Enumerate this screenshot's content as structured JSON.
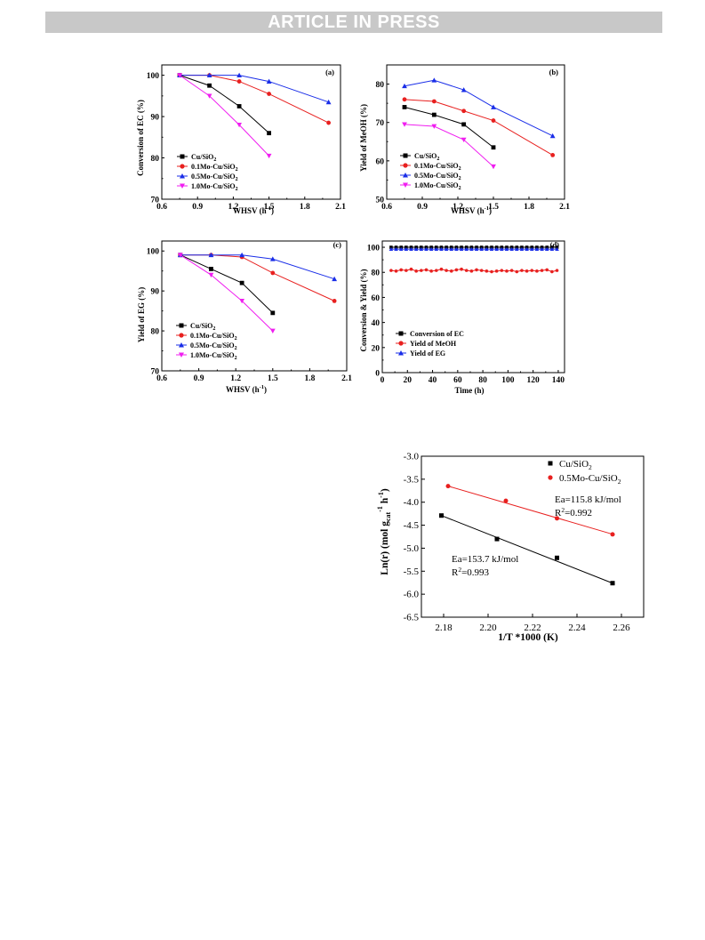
{
  "header": {
    "banner": "ARTICLE IN PRESS"
  },
  "legend_series": [
    {
      "name": "Cu/SiO",
      "sub": "2",
      "color": "#000000",
      "marker": "square"
    },
    {
      "name": "0.1Mo-Cu/SiO",
      "sub": "2",
      "color": "#e8201f",
      "marker": "circle"
    },
    {
      "name": "0.5Mo-Cu/SiO",
      "sub": "2",
      "color": "#1a2ee8",
      "marker": "triangle-up"
    },
    {
      "name": "1.0Mo-Cu/SiO",
      "sub": "2",
      "color": "#f01ef0",
      "marker": "triangle-down"
    }
  ],
  "chart_data": [
    {
      "id": "a",
      "type": "line",
      "panel_label": "(a)",
      "xlabel": "WHSV (h",
      "xlabel_sup": "-1",
      "xlabel_end": ")",
      "ylabel": "Conversion of EC (%)",
      "xlim": [
        0.6,
        2.1
      ],
      "ylim": [
        70,
        102.5
      ],
      "xticks": [
        "0.6",
        "0.9",
        "1.2",
        "1.5",
        "1.8",
        "2.1"
      ],
      "yticks": [
        "70",
        "80",
        "90",
        "100"
      ],
      "series": [
        {
          "x": [
            0.75,
            1.0,
            1.25,
            1.5
          ],
          "y": [
            100,
            97.5,
            92.5,
            86
          ]
        },
        {
          "x": [
            0.75,
            1.0,
            1.25,
            1.5,
            2.0
          ],
          "y": [
            100,
            100,
            98.5,
            95.5,
            88.5
          ]
        },
        {
          "x": [
            0.75,
            1.0,
            1.25,
            1.5,
            2.0
          ],
          "y": [
            100,
            100,
            100,
            98.5,
            93.5
          ]
        },
        {
          "x": [
            0.75,
            1.0,
            1.25,
            1.5
          ],
          "y": [
            100,
            95,
            88,
            80.5
          ]
        }
      ]
    },
    {
      "id": "b",
      "type": "line",
      "panel_label": "(b)",
      "xlabel": "WHSV (h",
      "xlabel_sup": "-1",
      "xlabel_end": ")",
      "ylabel": "Yield of MeOH (%)",
      "xlim": [
        0.6,
        2.1
      ],
      "ylim": [
        50,
        85
      ],
      "xticks": [
        "0.6",
        "0.9",
        "1.2",
        "1.5",
        "1.8",
        "2.1"
      ],
      "yticks": [
        "50",
        "60",
        "70",
        "80"
      ],
      "series": [
        {
          "x": [
            0.75,
            1.0,
            1.25,
            1.5
          ],
          "y": [
            74,
            72,
            69.5,
            63.5
          ]
        },
        {
          "x": [
            0.75,
            1.0,
            1.25,
            1.5,
            2.0
          ],
          "y": [
            76,
            75.5,
            73,
            70.5,
            61.5
          ]
        },
        {
          "x": [
            0.75,
            1.0,
            1.25,
            1.5,
            2.0
          ],
          "y": [
            79.5,
            81,
            78.5,
            74,
            66.5
          ]
        },
        {
          "x": [
            0.75,
            1.0,
            1.25,
            1.5
          ],
          "y": [
            69.5,
            69,
            65.5,
            58.5
          ]
        }
      ]
    },
    {
      "id": "c",
      "type": "line",
      "panel_label": "(c)",
      "xlabel": "WHSV (h",
      "xlabel_sup": "-1",
      "xlabel_end": ")",
      "ylabel": "Yield of EG (%)",
      "xlim": [
        0.6,
        2.1
      ],
      "ylim": [
        70,
        102.5
      ],
      "xticks": [
        "0.6",
        "0.9",
        "1.2",
        "1.5",
        "1.8",
        "2.1"
      ],
      "yticks": [
        "70",
        "80",
        "90",
        "100"
      ],
      "series": [
        {
          "x": [
            0.75,
            1.0,
            1.25,
            1.5
          ],
          "y": [
            99,
            95.5,
            92,
            84.5
          ]
        },
        {
          "x": [
            0.75,
            1.0,
            1.25,
            1.5,
            2.0
          ],
          "y": [
            99,
            99,
            98.5,
            94.5,
            87.5
          ]
        },
        {
          "x": [
            0.75,
            1.0,
            1.25,
            1.5,
            2.0
          ],
          "y": [
            99,
            99,
            99,
            98,
            93
          ]
        },
        {
          "x": [
            0.75,
            1.0,
            1.25,
            1.5
          ],
          "y": [
            99,
            94,
            87.5,
            80
          ]
        }
      ]
    },
    {
      "id": "d",
      "type": "line",
      "panel_label": "(d)",
      "xlabel": "Time (h)",
      "ylabel": "Conversion & Yield (%)",
      "xlim": [
        0,
        145
      ],
      "ylim": [
        0,
        105
      ],
      "xticks": [
        "0",
        "20",
        "40",
        "60",
        "80",
        "100",
        "120",
        "140"
      ],
      "yticks": [
        "0",
        "20",
        "40",
        "60",
        "80",
        "100"
      ],
      "series": [
        {
          "name": "Conversion of EC",
          "color": "#000000",
          "marker": "square",
          "x": [
            7,
            11,
            15,
            19,
            23,
            27,
            31,
            35,
            39,
            43,
            47,
            51,
            55,
            59,
            63,
            67,
            71,
            75,
            79,
            83,
            87,
            91,
            95,
            99,
            103,
            107,
            111,
            115,
            119,
            123,
            127,
            131,
            135,
            139
          ],
          "y": [
            100,
            100,
            100,
            100,
            100,
            100,
            100,
            100,
            100,
            100,
            100,
            100,
            100,
            100,
            100,
            100,
            100,
            100,
            100,
            100,
            100,
            100,
            100,
            100,
            100,
            100,
            100,
            100,
            100,
            100,
            100,
            100,
            100,
            100
          ]
        },
        {
          "name": "Yield of MeOH",
          "color": "#e8201f",
          "marker": "circle",
          "x": [
            7,
            11,
            15,
            19,
            23,
            27,
            31,
            35,
            39,
            43,
            47,
            51,
            55,
            59,
            63,
            67,
            71,
            75,
            79,
            83,
            87,
            91,
            95,
            99,
            103,
            107,
            111,
            115,
            119,
            123,
            127,
            131,
            135,
            139
          ],
          "y": [
            81.5,
            81,
            82,
            81.5,
            82.5,
            81,
            81.5,
            82,
            81,
            81.5,
            82.5,
            81.5,
            81,
            82,
            82.5,
            81.5,
            81,
            82,
            81.5,
            81,
            80.5,
            81,
            81.5,
            81,
            81.5,
            80.5,
            81.5,
            81,
            81.5,
            81,
            81.5,
            82,
            80.5,
            81.5
          ]
        },
        {
          "name": "Yield of EG",
          "color": "#1a2ee8",
          "marker": "triangle-up",
          "x": [
            7,
            11,
            15,
            19,
            23,
            27,
            31,
            35,
            39,
            43,
            47,
            51,
            55,
            59,
            63,
            67,
            71,
            75,
            79,
            83,
            87,
            91,
            95,
            99,
            103,
            107,
            111,
            115,
            119,
            123,
            127,
            131,
            135,
            139
          ],
          "y": [
            98.5,
            98.5,
            98.5,
            98.5,
            98.5,
            98.5,
            98.5,
            98.5,
            98.5,
            98.5,
            98.5,
            98.5,
            98.5,
            98.5,
            98.5,
            98.5,
            98.5,
            98.5,
            98.5,
            98.5,
            98.5,
            98.5,
            98.5,
            98.5,
            98.5,
            98.5,
            98.5,
            98.5,
            98.5,
            98.5,
            98.5,
            98.5,
            98.5,
            98.5
          ]
        }
      ]
    },
    {
      "id": "arrhenius",
      "type": "scatter",
      "xlabel": "1/T *1000 (K)",
      "ylabel_main": "Ln(r)  (mol g",
      "ylabel_sub": "cat",
      "ylabel_sup": "-1",
      "ylabel_end": " h",
      "ylabel_sup2": "-1",
      "ylabel_close": ")",
      "xlim": [
        2.17,
        2.27
      ],
      "ylim": [
        -6.5,
        -3.0
      ],
      "xticks": [
        "2.18",
        "2.20",
        "2.22",
        "2.24",
        "2.26"
      ],
      "yticks": [
        "-3.0",
        "-3.5",
        "-4.0",
        "-4.5",
        "-5.0",
        "-5.5",
        "-6.0",
        "-6.5"
      ],
      "series": [
        {
          "name": "Cu/SiO",
          "sub": "2",
          "color": "#000000",
          "marker": "square",
          "x": [
            2.179,
            2.204,
            2.231,
            2.256
          ],
          "y": [
            -4.29,
            -4.8,
            -5.21,
            -5.76
          ],
          "fit": {
            "x": [
              2.179,
              2.257
            ],
            "y": [
              -4.29,
              -5.78
            ]
          },
          "ea": "Ea=153.7 kJ/mol",
          "r2_pre": "R",
          "r2_sup": "2",
          "r2_post": "=0.993"
        },
        {
          "name": "0.5Mo-Cu/SiO",
          "sub": "2",
          "color": "#e8201f",
          "marker": "circle",
          "x": [
            2.182,
            2.208,
            2.231,
            2.256
          ],
          "y": [
            -3.65,
            -3.97,
            -4.35,
            -4.7
          ],
          "fit": {
            "x": [
              2.182,
              2.257
            ],
            "y": [
              -3.65,
              -4.71
            ]
          },
          "ea": "Ea=115.8 kJ/mol",
          "r2_pre": "R",
          "r2_sup": "2",
          "r2_post": "=0.992"
        }
      ]
    }
  ]
}
